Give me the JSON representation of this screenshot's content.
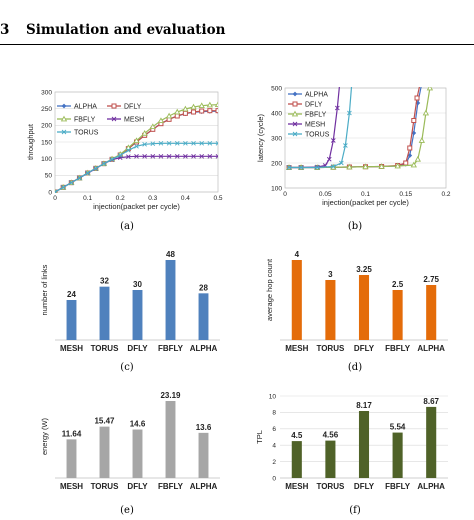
{
  "section": {
    "number": "3",
    "title": "Simulation and evaluation"
  },
  "captions": [
    "(a)",
    "(b)",
    "(c)",
    "(d)",
    "(e)",
    "(f)"
  ],
  "chart_data": [
    {
      "type": "line",
      "xlabel": "injection(packet per cycle)",
      "ylabel": "throughput",
      "xlim": [
        0,
        0.5
      ],
      "ylim": [
        0,
        300
      ],
      "xticks": [
        "0",
        "0.1",
        "0.2",
        "0.3",
        "0.4",
        "0.5"
      ],
      "yticks": [
        "0",
        "50",
        "100",
        "150",
        "200",
        "250",
        "300"
      ],
      "grid": true,
      "legend": "top-left, two columns",
      "x": [
        0,
        0.025,
        0.05,
        0.075,
        0.1,
        0.125,
        0.15,
        0.175,
        0.2,
        0.225,
        0.25,
        0.275,
        0.3,
        0.325,
        0.35,
        0.375,
        0.4,
        0.425,
        0.45,
        0.475,
        0.5
      ],
      "series": [
        {
          "name": "ALPHA",
          "color": "#4472c4",
          "marker": "diamond",
          "values": [
            0,
            14,
            28,
            42,
            57,
            71,
            85,
            98,
            111,
            130,
            150,
            170,
            188,
            205,
            218,
            228,
            235,
            239,
            241,
            242,
            242
          ]
        },
        {
          "name": "DFLY",
          "color": "#c0504d",
          "marker": "square",
          "values": [
            0,
            14,
            28,
            42,
            57,
            71,
            85,
            98,
            111,
            130,
            150,
            170,
            188,
            205,
            218,
            228,
            236,
            240,
            243,
            244,
            244
          ]
        },
        {
          "name": "FBFLY",
          "color": "#9bbb59",
          "marker": "triangle",
          "values": [
            0,
            14,
            28,
            42,
            57,
            71,
            85,
            99,
            113,
            133,
            154,
            176,
            196,
            214,
            228,
            240,
            249,
            255,
            259,
            261,
            262
          ]
        },
        {
          "name": "MESH",
          "color": "#7030a0",
          "marker": "x",
          "values": [
            0,
            14,
            28,
            42,
            56,
            70,
            85,
            97,
            103,
            106,
            107,
            107,
            107,
            107,
            107,
            107,
            107,
            107,
            107,
            107,
            107
          ]
        },
        {
          "name": "TORUS",
          "color": "#4bacc6",
          "marker": "x",
          "values": [
            0,
            14,
            28,
            42,
            57,
            71,
            85,
            98,
            110,
            125,
            137,
            143,
            145,
            146,
            146,
            146,
            146,
            146,
            146,
            146,
            146
          ]
        }
      ]
    },
    {
      "type": "line",
      "xlabel": "injection(packet per cycle)",
      "ylabel": "latency (cycle)",
      "xlim": [
        0,
        0.2
      ],
      "ylim": [
        100,
        500
      ],
      "xticks": [
        "0",
        "0.05",
        "0.1",
        "0.15",
        "0.2"
      ],
      "yticks": [
        "100",
        "200",
        "300",
        "400",
        "500"
      ],
      "grid": true,
      "legend": "top-left",
      "series": [
        {
          "name": "ALPHA",
          "color": "#4472c4",
          "marker": "diamond",
          "x": [
            0.005,
            0.02,
            0.04,
            0.06,
            0.08,
            0.1,
            0.12,
            0.14,
            0.15,
            0.155,
            0.16,
            0.165,
            0.17
          ],
          "values": [
            182,
            182,
            182,
            183,
            184,
            185,
            186,
            188,
            195,
            230,
            320,
            440,
            520
          ]
        },
        {
          "name": "DFLY",
          "color": "#c0504d",
          "marker": "square",
          "x": [
            0.005,
            0.02,
            0.04,
            0.06,
            0.08,
            0.1,
            0.12,
            0.14,
            0.15,
            0.155,
            0.16,
            0.164,
            0.168
          ],
          "values": [
            182,
            182,
            182,
            183,
            184,
            185,
            186,
            190,
            200,
            260,
            370,
            460,
            520
          ]
        },
        {
          "name": "FBFLY",
          "color": "#9bbb59",
          "marker": "triangle",
          "x": [
            0.005,
            0.02,
            0.04,
            0.06,
            0.08,
            0.1,
            0.12,
            0.14,
            0.16,
            0.165,
            0.17,
            0.175,
            0.18
          ],
          "values": [
            182,
            182,
            182,
            183,
            184,
            185,
            186,
            188,
            192,
            215,
            290,
            400,
            500
          ]
        },
        {
          "name": "MESH",
          "color": "#7030a0",
          "marker": "x",
          "x": [
            0.005,
            0.02,
            0.04,
            0.05,
            0.055,
            0.06,
            0.065,
            0.068
          ],
          "values": [
            182,
            182,
            184,
            190,
            215,
            290,
            420,
            520
          ]
        },
        {
          "name": "TORUS",
          "color": "#4bacc6",
          "marker": "x",
          "x": [
            0.005,
            0.02,
            0.04,
            0.06,
            0.07,
            0.075,
            0.08,
            0.083
          ],
          "values": [
            182,
            182,
            182,
            186,
            200,
            270,
            400,
            520
          ]
        }
      ]
    },
    {
      "type": "bar",
      "ylabel": "number of links",
      "categories": [
        "MESH",
        "TORUS",
        "DFLY",
        "FBFLY",
        "ALPHA"
      ],
      "values": [
        24,
        32,
        30,
        48,
        28
      ],
      "labels": [
        "24",
        "32",
        "30",
        "48",
        "28"
      ],
      "ylim": [
        0,
        60
      ],
      "color": "#4f81bd",
      "grid": false
    },
    {
      "type": "bar",
      "ylabel": "average hop count",
      "categories": [
        "MESH",
        "TORUS",
        "DFLY",
        "FBFLY",
        "ALPHA"
      ],
      "values": [
        4,
        3,
        3.25,
        2.5,
        2.75
      ],
      "labels": [
        "4",
        "3",
        "3.25",
        "2.5",
        "2.75"
      ],
      "ylim": [
        0,
        5
      ],
      "color": "#e46c0a",
      "grid": false
    },
    {
      "type": "bar",
      "ylabel": "energy (W)",
      "categories": [
        "MESH",
        "TORUS",
        "DFLY",
        "FBFLY",
        "ALPHA"
      ],
      "values": [
        11.64,
        15.47,
        14.6,
        23.19,
        13.6
      ],
      "labels": [
        "11.64",
        "15.47",
        "14.6",
        "23.19",
        "13.6"
      ],
      "ylim": [
        0,
        25
      ],
      "color": "#a6a6a6",
      "grid": false
    },
    {
      "type": "bar",
      "ylabel": "TPL",
      "categories": [
        "MESH",
        "TORUS",
        "DFLY",
        "FBFLY",
        "ALPHA"
      ],
      "values": [
        4.5,
        4.56,
        8.17,
        5.54,
        8.67
      ],
      "labels": [
        "4.5",
        "4.56",
        "8.17",
        "5.54",
        "8.67"
      ],
      "yticks": [
        "0",
        "2",
        "4",
        "6",
        "8",
        "10"
      ],
      "ylim": [
        0,
        10
      ],
      "color": "#4f6228",
      "grid": true
    }
  ]
}
